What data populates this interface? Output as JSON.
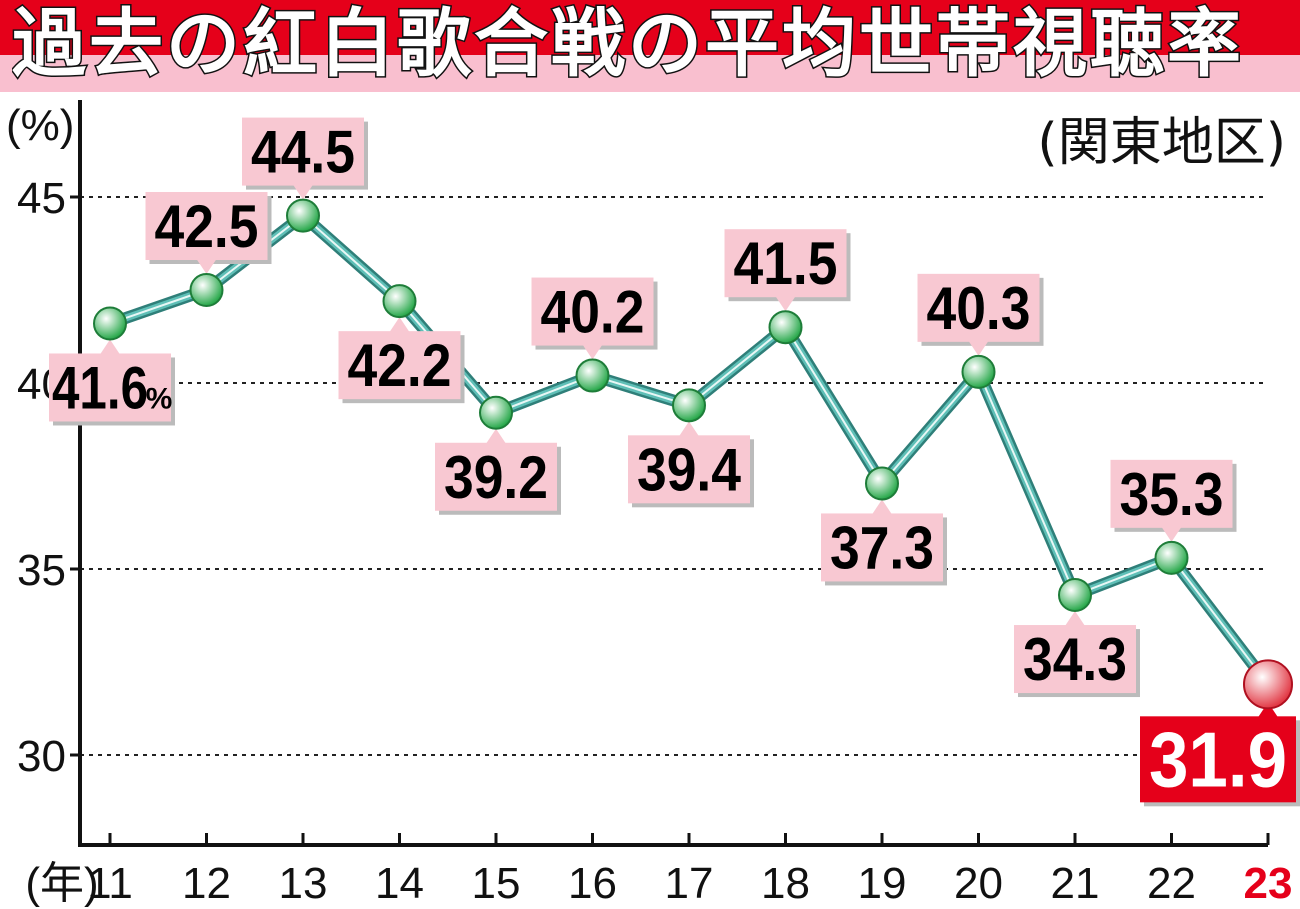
{
  "header": {
    "title": "過去の紅白歌合戦の平均世帯視聴率",
    "region": "(関東地区)"
  },
  "chart_data": {
    "type": "line",
    "title": "過去の紅白歌合戦の平均世帯視聴率",
    "subtitle": "(関東地区)",
    "y_unit_label": "(%)",
    "x_unit_label": "(年)",
    "x": [
      "11",
      "12",
      "13",
      "14",
      "15",
      "16",
      "17",
      "18",
      "19",
      "20",
      "21",
      "22",
      "23"
    ],
    "values": [
      41.6,
      42.5,
      44.5,
      42.2,
      39.2,
      40.2,
      39.4,
      41.5,
      37.3,
      40.3,
      34.3,
      35.3,
      31.9
    ],
    "value_labels": [
      "41.6",
      "42.5",
      "44.5",
      "42.2",
      "39.2",
      "40.2",
      "39.4",
      "41.5",
      "37.3",
      "40.3",
      "34.3",
      "35.3",
      "31.9"
    ],
    "label_positions": [
      "below",
      "above",
      "above",
      "below",
      "below",
      "above",
      "below",
      "above",
      "below",
      "above",
      "below",
      "above",
      "below"
    ],
    "first_label_unit": "%",
    "highlight_index": 12,
    "ylim": [
      28,
      48
    ],
    "yticks": [
      30,
      35,
      40,
      45
    ],
    "grid": "dotted horizontal at y ticks",
    "colors": {
      "line": "#5fbfb7",
      "line_outline": "#2f7f79",
      "point": "#27a84a",
      "point_highlight": "#e23a46",
      "label_bg": "#f8c8d2",
      "label_bg_highlight": "#e5001a",
      "highlight_text": "#e5001a"
    }
  }
}
